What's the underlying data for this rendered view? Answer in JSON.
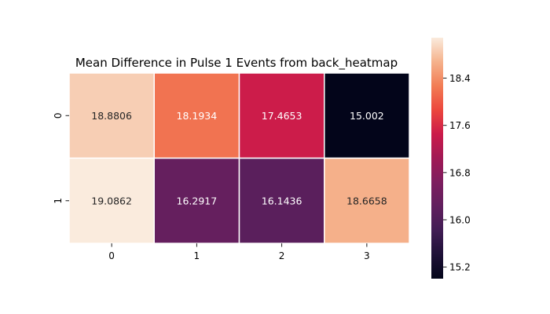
{
  "chart_data": {
    "type": "heatmap",
    "title": "Mean Difference in Pulse 1 Events from back_heatmap",
    "xlabel": "",
    "ylabel": "",
    "x_categories": [
      "0",
      "1",
      "2",
      "3"
    ],
    "y_categories": [
      "0",
      "1"
    ],
    "values": [
      [
        18.8806,
        18.1934,
        17.4653,
        15.002
      ],
      [
        19.0862,
        16.2917,
        16.1436,
        18.6658
      ]
    ],
    "value_labels": [
      [
        "18.8806",
        "18.1934",
        "17.4653",
        "15.002"
      ],
      [
        "19.0862",
        "16.2917",
        "16.1436",
        "18.6658"
      ]
    ],
    "colorbar": {
      "ticks": [
        15.2,
        16.0,
        16.8,
        17.6,
        18.4
      ],
      "tick_labels": [
        "15.2",
        "16.0",
        "16.8",
        "17.6",
        "18.4"
      ],
      "range": [
        15.002,
        19.0862
      ],
      "colormap": "rocket"
    },
    "grid": false,
    "cell_border_color": "#ffffff"
  }
}
